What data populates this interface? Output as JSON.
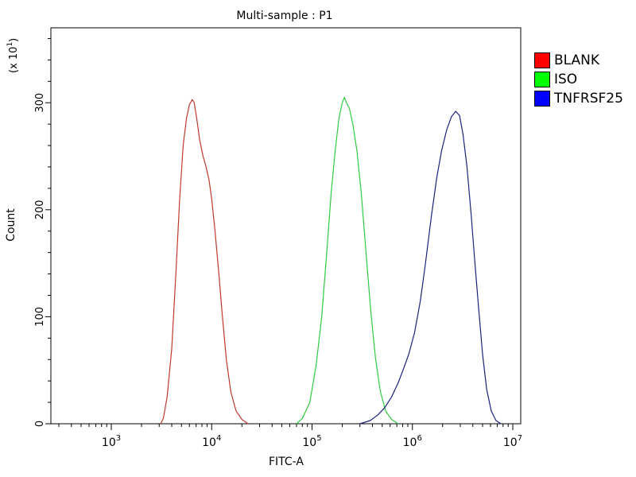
{
  "chart_data": {
    "type": "line",
    "title": "Multi-sample : P1",
    "xlabel": "FITC-A",
    "ylabel": "Count",
    "y_scale_note": "(x 10",
    "y_scale_exp": "1",
    "x_scale": "log",
    "xlim": [
      250,
      12000000
    ],
    "ylim": [
      0,
      370
    ],
    "x_ticks": [
      {
        "base": "10",
        "exp": "3",
        "value": 1000
      },
      {
        "base": "10",
        "exp": "4",
        "value": 10000
      },
      {
        "base": "10",
        "exp": "5",
        "value": 100000
      },
      {
        "base": "10",
        "exp": "6",
        "value": 1000000
      },
      {
        "base": "10",
        "exp": "7",
        "value": 10000000
      }
    ],
    "y_ticks": [
      0,
      100,
      200,
      300
    ],
    "legend_position": "right",
    "series": [
      {
        "name": "BLANK",
        "color": "#c0392b",
        "points": [
          [
            3100,
            0
          ],
          [
            3300,
            5
          ],
          [
            3600,
            25
          ],
          [
            4000,
            70
          ],
          [
            4400,
            140
          ],
          [
            4800,
            210
          ],
          [
            5200,
            260
          ],
          [
            5600,
            285
          ],
          [
            6000,
            298
          ],
          [
            6400,
            303
          ],
          [
            6700,
            300
          ],
          [
            7100,
            285
          ],
          [
            7600,
            265
          ],
          [
            8200,
            250
          ],
          [
            8800,
            240
          ],
          [
            9400,
            228
          ],
          [
            10000,
            210
          ],
          [
            10800,
            180
          ],
          [
            11800,
            140
          ],
          [
            12800,
            100
          ],
          [
            14000,
            60
          ],
          [
            15500,
            30
          ],
          [
            17500,
            12
          ],
          [
            20000,
            4
          ],
          [
            23000,
            0
          ]
        ]
      },
      {
        "name": "ISO",
        "color": "#2ecc40",
        "points": [
          [
            70000,
            0
          ],
          [
            80000,
            5
          ],
          [
            95000,
            20
          ],
          [
            110000,
            55
          ],
          [
            125000,
            100
          ],
          [
            140000,
            160
          ],
          [
            155000,
            215
          ],
          [
            170000,
            255
          ],
          [
            185000,
            285
          ],
          [
            200000,
            300
          ],
          [
            210000,
            305
          ],
          [
            220000,
            300
          ],
          [
            235000,
            295
          ],
          [
            255000,
            280
          ],
          [
            280000,
            255
          ],
          [
            310000,
            215
          ],
          [
            345000,
            160
          ],
          [
            385000,
            105
          ],
          [
            430000,
            60
          ],
          [
            480000,
            30
          ],
          [
            540000,
            12
          ],
          [
            620000,
            4
          ],
          [
            720000,
            0
          ]
        ]
      },
      {
        "name": "TNFRSF25",
        "color": "#1a237e",
        "points": [
          [
            300000,
            0
          ],
          [
            380000,
            3
          ],
          [
            450000,
            8
          ],
          [
            530000,
            15
          ],
          [
            620000,
            25
          ],
          [
            720000,
            38
          ],
          [
            820000,
            52
          ],
          [
            920000,
            65
          ],
          [
            1050000,
            85
          ],
          [
            1200000,
            115
          ],
          [
            1350000,
            150
          ],
          [
            1550000,
            195
          ],
          [
            1750000,
            230
          ],
          [
            1950000,
            255
          ],
          [
            2200000,
            275
          ],
          [
            2450000,
            287
          ],
          [
            2700000,
            292
          ],
          [
            2950000,
            288
          ],
          [
            3200000,
            270
          ],
          [
            3500000,
            240
          ],
          [
            3850000,
            195
          ],
          [
            4200000,
            150
          ],
          [
            4600000,
            105
          ],
          [
            5000000,
            65
          ],
          [
            5500000,
            32
          ],
          [
            6100000,
            12
          ],
          [
            6800000,
            3
          ],
          [
            7600000,
            0
          ]
        ]
      }
    ]
  }
}
